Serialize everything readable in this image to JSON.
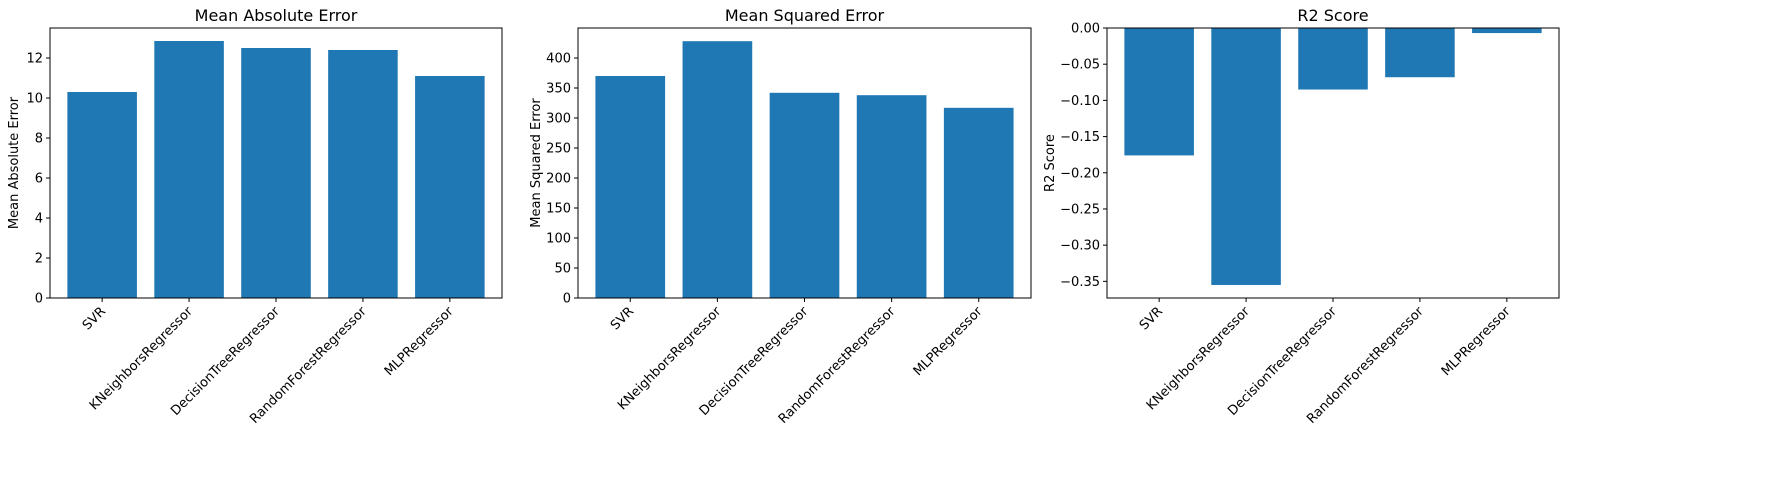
{
  "colors": {
    "bar": "#1f77b4",
    "axis": "#000000",
    "background": "#ffffff"
  },
  "chart_data": [
    {
      "type": "bar",
      "title": "Mean Absolute Error",
      "xlabel": "",
      "ylabel": "Mean Absolute Error",
      "categories": [
        "SVR",
        "KNeighborsRegressor",
        "DecisionTreeRegressor",
        "RandomForestRegressor",
        "MLPRegressor"
      ],
      "values": [
        10.3,
        12.85,
        12.5,
        12.4,
        11.1
      ],
      "ylim": [
        0,
        13.5
      ],
      "yticks": [
        0,
        2,
        4,
        6,
        8,
        10,
        12
      ],
      "ytick_labels": [
        "0",
        "2",
        "4",
        "6",
        "8",
        "10",
        "12"
      ],
      "grid": false
    },
    {
      "type": "bar",
      "title": "Mean Squared Error",
      "xlabel": "",
      "ylabel": "Mean Squared Error",
      "categories": [
        "SVR",
        "KNeighborsRegressor",
        "DecisionTreeRegressor",
        "RandomForestRegressor",
        "MLPRegressor"
      ],
      "values": [
        370,
        428,
        342,
        338,
        317
      ],
      "ylim": [
        0,
        450
      ],
      "yticks": [
        0,
        50,
        100,
        150,
        200,
        250,
        300,
        350,
        400
      ],
      "ytick_labels": [
        "0",
        "50",
        "100",
        "150",
        "200",
        "250",
        "300",
        "350",
        "400"
      ],
      "grid": false
    },
    {
      "type": "bar",
      "title": "R2 Score",
      "xlabel": "",
      "ylabel": "R2 Score",
      "categories": [
        "SVR",
        "KNeighborsRegressor",
        "DecisionTreeRegressor",
        "RandomForestRegressor",
        "MLPRegressor"
      ],
      "values": [
        -0.176,
        -0.355,
        -0.085,
        -0.068,
        -0.007
      ],
      "ylim": [
        -0.373,
        0
      ],
      "yticks": [
        0,
        -0.05,
        -0.1,
        -0.15,
        -0.2,
        -0.25,
        -0.3,
        -0.35
      ],
      "ytick_labels": [
        "0.00",
        "−0.05",
        "−0.10",
        "−0.15",
        "−0.20",
        "−0.25",
        "−0.30",
        "−0.35"
      ],
      "grid": false
    }
  ]
}
